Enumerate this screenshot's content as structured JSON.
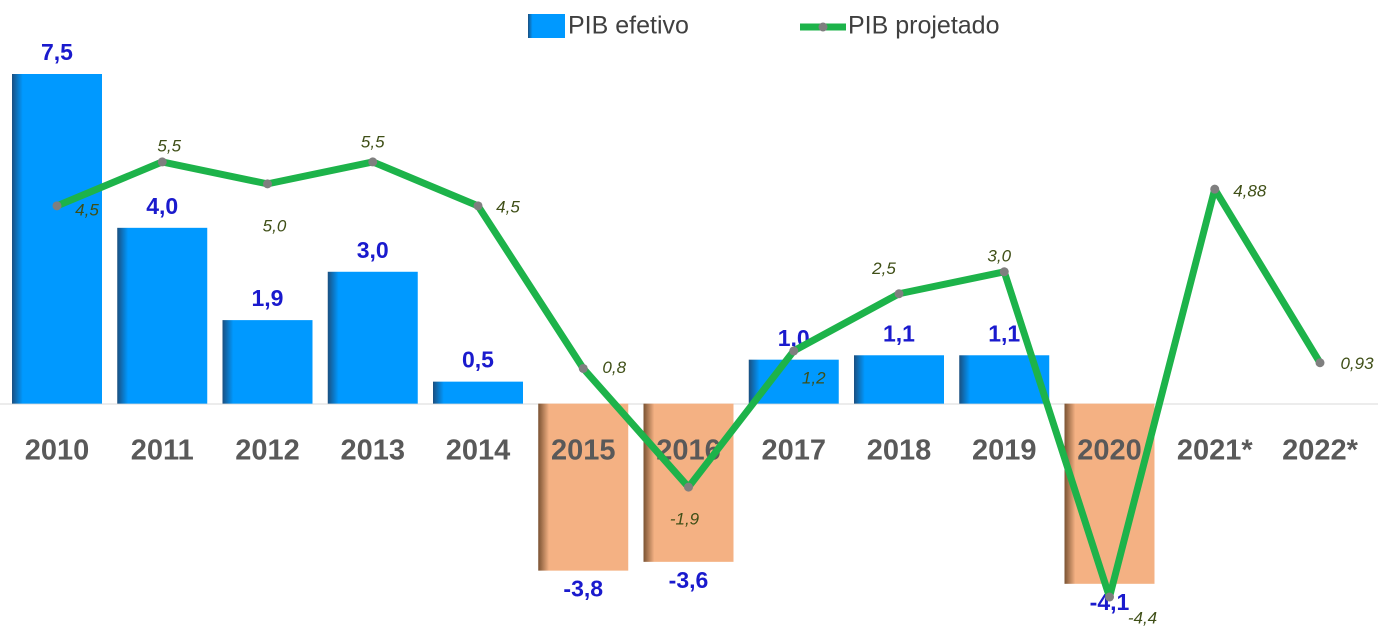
{
  "chart_data": {
    "type": "bar-line",
    "categories": [
      "2010",
      "2011",
      "2012",
      "2013",
      "2014",
      "2015",
      "2016",
      "2017",
      "2018",
      "2019",
      "2020",
      "2021*",
      "2022*"
    ],
    "series": [
      {
        "name": "PIB efetivo",
        "type": "bar",
        "color": "#0099ff",
        "negative_color": "#f4b183",
        "values": [
          7.5,
          4.0,
          1.9,
          3.0,
          0.5,
          -3.8,
          -3.6,
          1.0,
          1.1,
          1.1,
          -4.1,
          null,
          null
        ],
        "value_labels": [
          "7,5",
          "4,0",
          "1,9",
          "3,0",
          "0,5",
          "-3,8",
          "-3,6",
          "1,0",
          "1,1",
          "1,1",
          "-4,1",
          null,
          null
        ]
      },
      {
        "name": "PIB projetado",
        "type": "line",
        "color": "#1db34a",
        "values": [
          4.5,
          5.5,
          5.0,
          5.5,
          4.5,
          0.8,
          -1.9,
          1.2,
          2.5,
          3.0,
          -4.4,
          4.88,
          0.93
        ],
        "value_labels": [
          "4,5",
          "5,5",
          "5,0",
          "5,5",
          "4,5",
          "0,8",
          "-1,9",
          "1,2",
          "2,5",
          "3,0",
          "-4,4",
          "4,88",
          "0,93"
        ]
      }
    ],
    "legend": "top"
  }
}
